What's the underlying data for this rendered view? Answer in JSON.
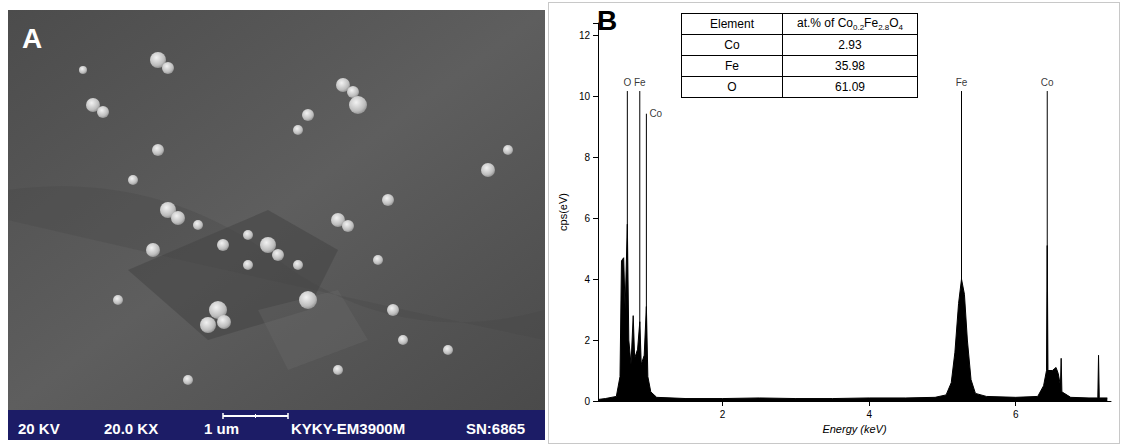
{
  "panel_a": {
    "label": "A",
    "info_bar": [
      "20 KV",
      "20.0 KX",
      "1 um",
      "KYKY-EM3900M",
      "SN:6865"
    ]
  },
  "chart_data": {
    "type": "line",
    "panel_label": "B",
    "x_label": "Energy (keV)",
    "y_label": "cps(eV)",
    "x": [
      0.3,
      0.4,
      0.55,
      0.6,
      0.62,
      0.65,
      0.67,
      0.7,
      0.72,
      0.75,
      0.78,
      0.8,
      0.84,
      0.87,
      0.89,
      0.93,
      0.96,
      0.98,
      1.02,
      1.1,
      1.5,
      2.0,
      2.5,
      3.0,
      3.5,
      4.0,
      4.5,
      4.9,
      5.05,
      5.12,
      5.17,
      5.22,
      5.26,
      5.3,
      5.34,
      5.39,
      5.45,
      5.6,
      6.0,
      6.3,
      6.38,
      6.42,
      6.43,
      6.44,
      6.5,
      6.55,
      6.58,
      6.61,
      6.62,
      6.63,
      6.75,
      7.0,
      7.12,
      7.13,
      7.14,
      7.25
    ],
    "values": [
      0.05,
      0.08,
      0.15,
      0.8,
      4.6,
      4.7,
      3.0,
      5.8,
      2.0,
      1.2,
      2.8,
      1.4,
      1.7,
      2.6,
      1.2,
      1.5,
      3.1,
      0.8,
      0.3,
      0.12,
      0.08,
      0.08,
      0.1,
      0.08,
      0.08,
      0.1,
      0.1,
      0.12,
      0.2,
      0.6,
      1.6,
      3.2,
      4.0,
      3.5,
      2.0,
      0.7,
      0.25,
      0.15,
      0.12,
      0.15,
      0.5,
      1.0,
      5.1,
      1.0,
      1.0,
      1.1,
      0.9,
      0.5,
      1.4,
      0.3,
      0.12,
      0.1,
      0.1,
      1.5,
      0.1,
      0.1
    ],
    "color": "#000000",
    "xlim": [
      0.3,
      7.3
    ],
    "xticks": [
      2,
      4,
      6
    ],
    "ylim": [
      0,
      12.4
    ],
    "yticks": [
      0,
      2,
      4,
      6,
      8,
      10,
      12
    ],
    "grid": false,
    "peak_labels": [
      {
        "x": 0.7,
        "label": "O"
      },
      {
        "x": 0.87,
        "label": "Fe"
      },
      {
        "x": 0.96,
        "label": "Co"
      },
      {
        "x": 5.26,
        "label": "Fe"
      },
      {
        "x": 6.43,
        "label": "Co"
      }
    ],
    "table": {
      "header": [
        "Element",
        "at.% of Co0.2Fe2.8O4"
      ],
      "rows": [
        [
          "Co",
          2.93
        ],
        [
          "Fe",
          35.98
        ],
        [
          "O",
          61.09
        ]
      ]
    }
  }
}
